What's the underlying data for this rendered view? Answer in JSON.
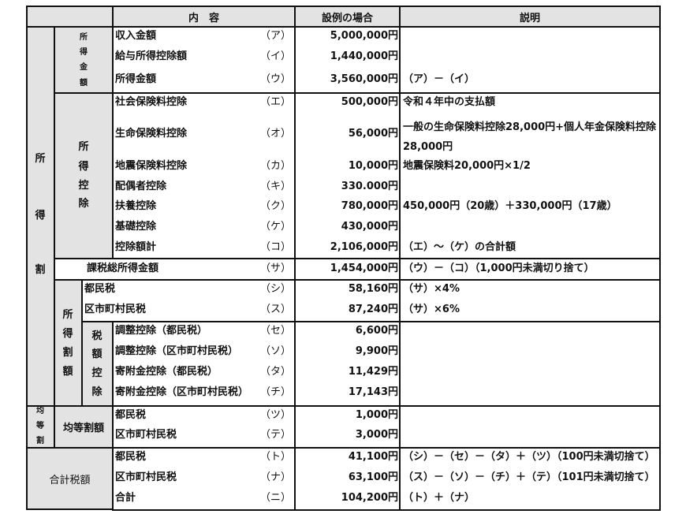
{
  "header": {
    "content": "内　容",
    "example": "設例の場合",
    "explanation": "説明"
  },
  "side_labels": {
    "shotokuwari": [
      "所",
      "得",
      "割"
    ],
    "shotoku_kingaku": [
      "所",
      "得",
      "金",
      "額"
    ],
    "shotoku_kojo": [
      "所",
      "得",
      "控",
      "除"
    ],
    "shotokuwari_gaku": [
      "所",
      "得",
      "割",
      "額"
    ],
    "zeigaku_kojo": [
      "税",
      "額",
      "控",
      "除"
    ],
    "kintowari": [
      "均",
      "等",
      "割"
    ],
    "kintowari_gaku": "均等割額",
    "gokei_zeigaku": "合計税額"
  },
  "rows": [
    {
      "item": "収入金額",
      "label": "（ア）",
      "amount": "5,000,000円",
      "note": ""
    },
    {
      "item": "給与所得控除額",
      "label": "（イ）",
      "amount": "1,440,000円",
      "note": ""
    },
    {
      "item": "所得金額",
      "label": "（ウ）",
      "amount": "3,560,000円",
      "note": "（ア）－（イ）"
    },
    {
      "item": "社会保険料控除",
      "label": "（エ）",
      "amount": "500,000円",
      "note": "令和４年中の支払額"
    },
    {
      "item": "生命保険料控除",
      "label": "（オ）",
      "amount": "56,000円",
      "note": "一般の生命保険料控除28,000円+個人年金保険料控除28,000円"
    },
    {
      "item": "地震保険料控除",
      "label": "（カ）",
      "amount": "10,000円",
      "note": "地震保険料20,000円×1/2"
    },
    {
      "item": "配偶者控除",
      "label": "（キ）",
      "amount": "330.000円",
      "note": ""
    },
    {
      "item": "扶養控除",
      "label": "（ク）",
      "amount": "780,000円",
      "note": "450,000円（20歳）＋330,000円（17歳）"
    },
    {
      "item": "基礎控除",
      "label": "（ケ）",
      "amount": "430,000円",
      "note": ""
    },
    {
      "item": "控除額計",
      "label": "（コ）",
      "amount": "2,106,000円",
      "note": "（エ）～（ケ）の合計額"
    },
    {
      "item": "課税総所得金額",
      "label": "（サ）",
      "amount": "1,454,000円",
      "note": "（ウ）－（コ）（1,000円未満切り捨て）"
    },
    {
      "item": "都民税",
      "label": "（シ）",
      "amount": "58,160円",
      "note": "（サ）×4%"
    },
    {
      "item": "区市町村民税",
      "label": "（ス）",
      "amount": "87,240円",
      "note": "（サ）×6%"
    },
    {
      "item": "調整控除（都民税）",
      "label": "（セ）",
      "amount": "6,600円",
      "note": ""
    },
    {
      "item": "調整控除（区市町村民税）",
      "label": "（ソ）",
      "amount": "9,900円",
      "note": ""
    },
    {
      "item": "寄附金控除（都民税）",
      "label": "（タ）",
      "amount": "11,429円",
      "note": ""
    },
    {
      "item": "寄附金控除（区市町村民税）",
      "label": "（チ）",
      "amount": "17,143円",
      "note": ""
    },
    {
      "item": "都民税",
      "label": "（ツ）",
      "amount": "1,000円",
      "note": ""
    },
    {
      "item": "区市町村民税",
      "label": "（テ）",
      "amount": "3,000円",
      "note": ""
    },
    {
      "item": "都民税",
      "label": "（ト）",
      "amount": "41,100円",
      "note": "（シ）－（セ）－（タ）＋（ツ）（100円未満切捨て）"
    },
    {
      "item": "区市町村民税",
      "label": "（ナ）",
      "amount": "63,100円",
      "note": "（ス）－（ソ）－（チ）＋（テ）（101円未満切捨て）"
    },
    {
      "item": "合計",
      "label": "（ニ）",
      "amount": "104,200円",
      "note": "（ト）＋（ナ）"
    }
  ]
}
